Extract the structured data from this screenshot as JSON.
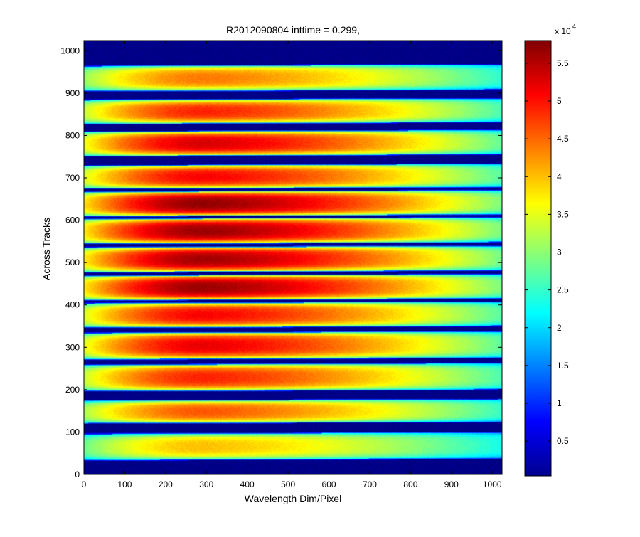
{
  "chart_data": {
    "type": "heatmap",
    "title": "R2012090804 inttime = 0.299,",
    "xlabel": "Wavelength Dim/Pixel",
    "ylabel": "Across Tracks",
    "xlim": [
      0,
      1024
    ],
    "ylim": [
      0,
      1024
    ],
    "x_ticks": [
      0,
      100,
      200,
      300,
      400,
      500,
      600,
      700,
      800,
      900,
      1000
    ],
    "y_ticks": [
      0,
      100,
      200,
      300,
      400,
      500,
      600,
      700,
      800,
      900,
      1000
    ],
    "colorbar": {
      "range": [
        400,
        58000
      ],
      "ticks": [
        0.5,
        1,
        1.5,
        2,
        2.5,
        3,
        3.5,
        4,
        4.5,
        5,
        5.5
      ],
      "multiplier_label": "x 10",
      "multiplier_exponent": "4",
      "colormap": "jet"
    },
    "background_value": 800,
    "band_profile": {
      "peak_x": 290,
      "falloff_right_at_x1000": 0.38,
      "falloff_left_at_x0": 0.55
    },
    "bands": [
      {
        "y_start": 32,
        "y_end": 97,
        "peak": 40000
      },
      {
        "y_start": 119,
        "y_end": 175,
        "peak": 46000
      },
      {
        "y_start": 195,
        "y_end": 260,
        "peak": 49000
      },
      {
        "y_start": 270,
        "y_end": 335,
        "peak": 52000
      },
      {
        "y_start": 345,
        "y_end": 405,
        "peak": 51000
      },
      {
        "y_start": 410,
        "y_end": 470,
        "peak": 56500
      },
      {
        "y_start": 476,
        "y_end": 537,
        "peak": 56000
      },
      {
        "y_start": 543,
        "y_end": 604,
        "peak": 56500
      },
      {
        "y_start": 608,
        "y_end": 668,
        "peak": 57000
      },
      {
        "y_start": 673,
        "y_end": 730,
        "peak": 51000
      },
      {
        "y_start": 750,
        "y_end": 810,
        "peak": 53000
      },
      {
        "y_start": 826,
        "y_end": 885,
        "peak": 49000
      },
      {
        "y_start": 903,
        "y_end": 965,
        "peak": 44000
      }
    ]
  }
}
